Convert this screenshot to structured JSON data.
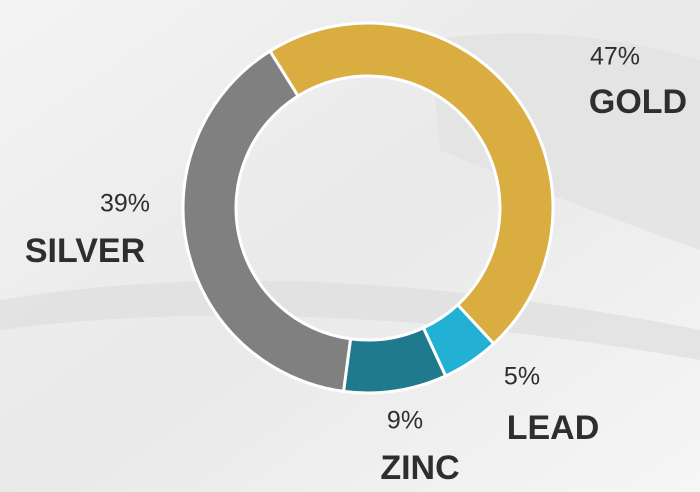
{
  "chart_data": {
    "type": "pie",
    "categories": [
      "GOLD",
      "LEAD",
      "ZINC",
      "SILVER"
    ],
    "values": [
      47,
      5,
      9,
      39
    ],
    "value_labels": [
      "47%",
      "5%",
      "9%",
      "39%"
    ],
    "colors": [
      "#d9ad3f",
      "#22b0d4",
      "#1f7a8e",
      "#808080"
    ],
    "donut": true
  }
}
